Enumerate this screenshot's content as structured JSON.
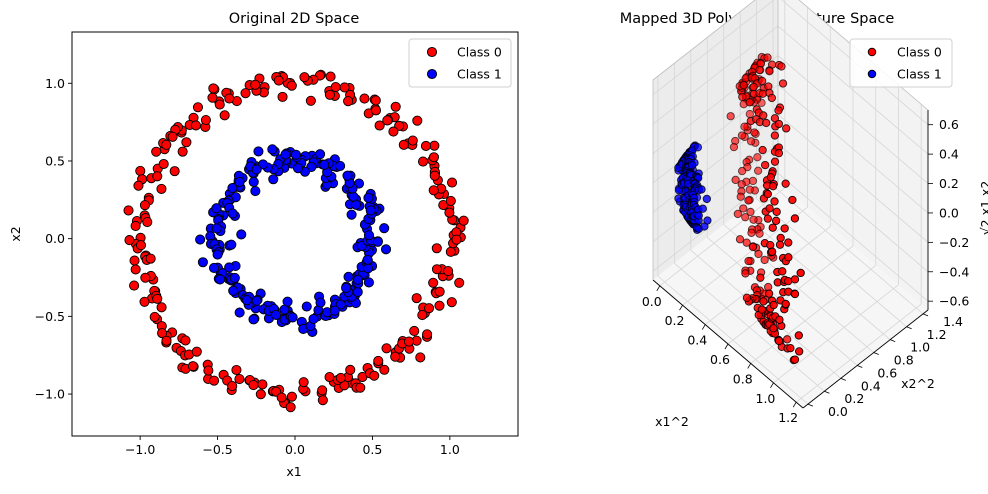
{
  "chart_data": [
    {
      "type": "scatter",
      "title": "Original 2D Space",
      "xlabel": "x1",
      "ylabel": "x2",
      "xlim": [
        -1.44,
        1.44
      ],
      "ylim": [
        -1.27,
        1.33
      ],
      "xticks": [
        -1.0,
        -0.5,
        0.0,
        0.5,
        1.0
      ],
      "yticks": [
        -1.0,
        -0.5,
        0.0,
        0.5,
        1.0
      ],
      "xtick_labels": [
        "−1.0",
        "−0.5",
        "0.0",
        "0.5",
        "1.0"
      ],
      "ytick_labels": [
        "−1.0",
        "−0.5",
        "0.0",
        "0.5",
        "1.0"
      ],
      "legend_position": "top-right",
      "grid": false,
      "series": [
        {
          "name": "Class 0",
          "color": "#ff0000",
          "shape": "circle",
          "ring_radius": 1.0,
          "noise": 0.05,
          "count": 250
        },
        {
          "name": "Class 1",
          "color": "#0000ff",
          "shape": "circle",
          "ring_radius": 0.5,
          "noise": 0.05,
          "count": 250
        }
      ]
    },
    {
      "type": "scatter3d",
      "title": "Mapped 3D Polynomial Feature Space",
      "xlabel": "x1^2",
      "ylabel": "x2^2",
      "zlabel": "√2 x1 x2",
      "xlim": [
        -0.06,
        1.26
      ],
      "ylim": [
        -0.06,
        1.46
      ],
      "zlim": [
        -0.66,
        0.7
      ],
      "xticks": [
        0.0,
        0.2,
        0.4,
        0.6,
        0.8,
        1.0,
        1.2
      ],
      "yticks": [
        0.0,
        0.2,
        0.4,
        0.6,
        0.8,
        1.0,
        1.2,
        1.4
      ],
      "zticks": [
        -0.6,
        -0.4,
        -0.2,
        0.0,
        0.2,
        0.4,
        0.6
      ],
      "xtick_labels": [
        "0.0",
        "0.2",
        "0.4",
        "0.6",
        "0.8",
        "1.0",
        "1.2"
      ],
      "ytick_labels": [
        "0.0",
        "0.2",
        "0.4",
        "0.6",
        "0.8",
        "1.0",
        "1.2",
        "1.4"
      ],
      "ztick_labels": [
        "−0.6",
        "−0.4",
        "−0.2",
        "0.0",
        "0.2",
        "0.4",
        "0.6"
      ],
      "legend_position": "top-right",
      "grid": true,
      "series": [
        {
          "name": "Class 0",
          "color": "#ff0000"
        },
        {
          "name": "Class 1",
          "color": "#0000ff"
        }
      ]
    }
  ]
}
